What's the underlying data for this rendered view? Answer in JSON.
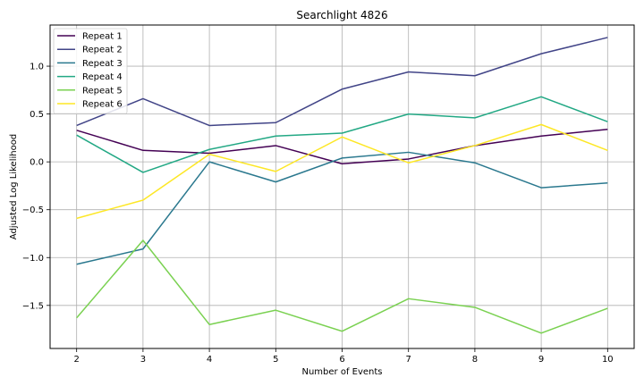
{
  "chart_data": {
    "type": "line",
    "title": "Searchlight 4826",
    "xlabel": "Number of Events",
    "ylabel": "Adjusted Log Likelihood",
    "x": [
      2,
      3,
      4,
      5,
      6,
      7,
      8,
      9,
      10
    ],
    "xlim": [
      1.6,
      10.4
    ],
    "ylim": [
      -1.95,
      1.43
    ],
    "xticks": [
      2,
      3,
      4,
      5,
      6,
      7,
      8,
      9,
      10
    ],
    "yticks": [
      -1.5,
      -1.0,
      -0.5,
      0.0,
      0.5,
      1.0
    ],
    "ytick_labels": [
      "−1.5",
      "−1.0",
      "−0.5",
      "0.0",
      "0.5",
      "1.0"
    ],
    "grid": true,
    "legend_position": "top-left",
    "series": [
      {
        "name": "Repeat 1",
        "color": "#440154",
        "values": [
          0.33,
          0.12,
          0.09,
          0.17,
          -0.02,
          0.03,
          0.17,
          0.27,
          0.34
        ]
      },
      {
        "name": "Repeat 2",
        "color": "#414487",
        "values": [
          0.38,
          0.66,
          0.38,
          0.41,
          0.76,
          0.94,
          0.9,
          1.13,
          1.3
        ]
      },
      {
        "name": "Repeat 3",
        "color": "#2a788e",
        "values": [
          -1.07,
          -0.91,
          0.0,
          -0.21,
          0.04,
          0.1,
          -0.01,
          -0.27,
          -0.22
        ]
      },
      {
        "name": "Repeat 4",
        "color": "#22a884",
        "values": [
          0.28,
          -0.11,
          0.13,
          0.27,
          0.3,
          0.5,
          0.46,
          0.68,
          0.42
        ]
      },
      {
        "name": "Repeat 5",
        "color": "#7ad151",
        "values": [
          -1.63,
          -0.82,
          -1.7,
          -1.55,
          -1.77,
          -1.43,
          -1.52,
          -1.79,
          -1.53
        ]
      },
      {
        "name": "Repeat 6",
        "color": "#fde725",
        "values": [
          -0.59,
          -0.4,
          0.08,
          -0.1,
          0.26,
          -0.01,
          0.17,
          0.39,
          0.12
        ]
      }
    ]
  }
}
